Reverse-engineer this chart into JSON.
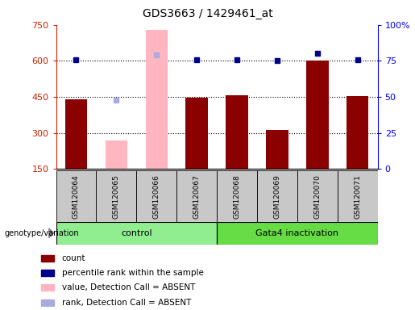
{
  "title": "GDS3663 / 1429461_at",
  "samples": [
    "GSM120064",
    "GSM120065",
    "GSM120066",
    "GSM120067",
    "GSM120068",
    "GSM120069",
    "GSM120070",
    "GSM120071"
  ],
  "count_values": [
    440,
    null,
    null,
    447,
    458,
    312,
    602,
    455
  ],
  "count_absent_values": [
    null,
    270,
    730,
    null,
    null,
    null,
    null,
    null
  ],
  "percentile_rank": [
    76,
    null,
    null,
    76,
    76,
    75,
    80,
    76
  ],
  "percentile_rank_absent": [
    null,
    48,
    79,
    null,
    null,
    null,
    null,
    null
  ],
  "ylim_left": [
    150,
    750
  ],
  "ylim_right": [
    0,
    100
  ],
  "yticks_left": [
    150,
    300,
    450,
    600,
    750
  ],
  "yticks_right": [
    0,
    25,
    50,
    75,
    100
  ],
  "ytick_labels_right": [
    "0",
    "25",
    "50",
    "75",
    "100%"
  ],
  "bar_width": 0.55,
  "bar_color_present": "#8B0000",
  "bar_color_absent": "#FFB6C1",
  "dot_color_present": "#00008B",
  "dot_color_absent": "#AAAADD",
  "group_color_control": "#90EE90",
  "group_color_gata4": "#66DD44",
  "legend_items": [
    {
      "color": "#8B0000",
      "label": "count"
    },
    {
      "color": "#00008B",
      "label": "percentile rank within the sample"
    },
    {
      "color": "#FFB6C1",
      "label": "value, Detection Call = ABSENT"
    },
    {
      "color": "#AAAADD",
      "label": "rank, Detection Call = ABSENT"
    }
  ]
}
